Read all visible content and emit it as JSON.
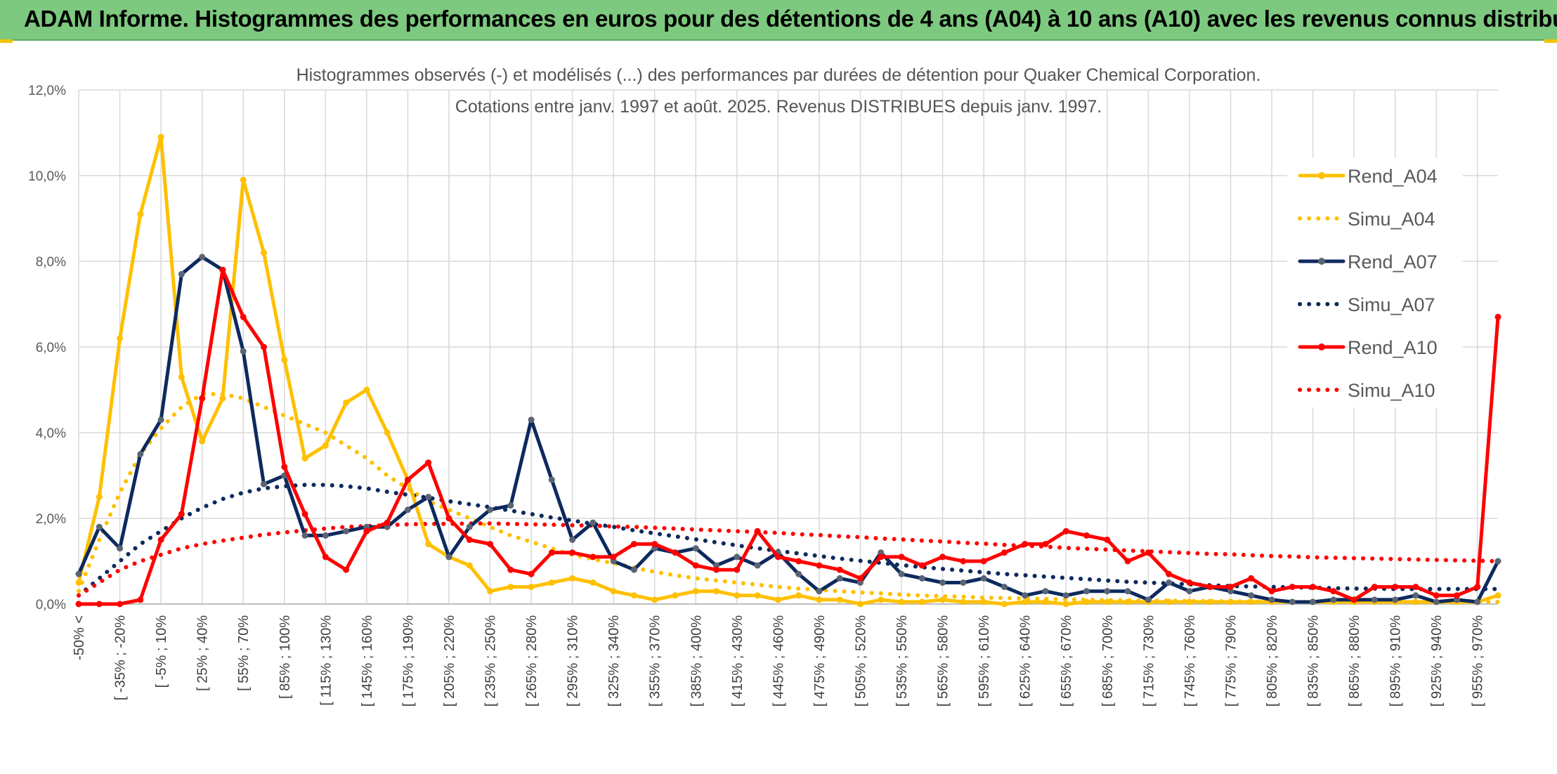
{
  "banner": {
    "title": "ADAM Informe. Histogrammes des performances en euros pour des détentions de 4 ans (A04) à 10 ans (A10) avec les revenus connus distribués"
  },
  "colors": {
    "banner": "#7dc97f",
    "grid": "#d9d9d9",
    "rend_a04": "#ffc000",
    "rend_a07": "#0d2a5e",
    "rend_a10": "#ff0000",
    "marker_a07": "#5a6473"
  },
  "chart_data": {
    "type": "line",
    "title": [
      "Histogrammes observés (-) et modélisés (...) des performances par durées de détention pour Quaker Chemical Corporation.",
      "Cotations entre janv. 1997 et août. 2025. Revenus DISTRIBUES depuis janv. 1997."
    ],
    "ylim": [
      0,
      12
    ],
    "yticks": [
      "0,0%",
      "2,0%",
      "4,0%",
      "6,0%",
      "8,0%",
      "10,0%",
      "12,0%"
    ],
    "grid": true,
    "legend_position": "right",
    "x_labels": [
      "-50% <",
      "[ -35% ; -20%",
      "[ -5% ; 10%",
      "[ 25% ; 40%",
      "[ 55% ; 70%",
      "[ 85% ; 100%",
      "[ 115% ; 130%",
      "[ 145% ; 160%",
      "[ 175% ; 190%",
      "[ 205% ; 220%",
      "[ 235% ; 250%",
      "[ 265% ; 280%",
      "[ 295% ; 310%",
      "[ 325% ; 340%",
      "[ 355% ; 370%",
      "[ 385% ; 400%",
      "[ 415% ; 430%",
      "[ 445% ; 460%",
      "[ 475% ; 490%",
      "[ 505% ; 520%",
      "[ 535% ; 550%",
      "[ 565% ; 580%",
      "[ 595% ; 610%",
      "[ 625% ; 640%",
      "[ 655% ; 670%",
      "[ 685% ; 700%",
      "[ 715% ; 730%",
      "[ 745% ; 760%",
      "[ 775% ; 790%",
      "[ 805% ; 820%",
      "[ 835% ; 850%",
      "[ 865% ; 880%",
      "[ 895% ; 910%",
      "[ 925% ; 940%",
      "[ 955% ; 970%"
    ],
    "x_count": 70,
    "series": [
      {
        "name": "Rend_A04",
        "style": "solid",
        "color": "#ffc000",
        "marker": true,
        "values": [
          0.5,
          2.5,
          6.2,
          9.1,
          10.9,
          5.3,
          3.8,
          4.8,
          9.9,
          8.2,
          5.7,
          3.4,
          3.7,
          4.7,
          5.0,
          4.0,
          2.9,
          1.4,
          1.1,
          0.9,
          0.3,
          0.4,
          0.4,
          0.5,
          0.6,
          0.5,
          0.3,
          0.2,
          0.1,
          0.2,
          0.3,
          0.3,
          0.2,
          0.2,
          0.1,
          0.2,
          0.1,
          0.1,
          0.0,
          0.1,
          0.05,
          0.05,
          0.1,
          0.05,
          0.05,
          0.0,
          0.05,
          0.05,
          0.0,
          0.05,
          0.05,
          0.05,
          0.05,
          0.05,
          0.05,
          0.05,
          0.05,
          0.05,
          0.05,
          0.05,
          0.05,
          0.05,
          0.05,
          0.05,
          0.05,
          0.05,
          0.05,
          0.05,
          0.05,
          0.2
        ]
      },
      {
        "name": "Simu_A04",
        "style": "dotted",
        "color": "#ffc000",
        "marker": false,
        "values": [
          0.3,
          1.5,
          2.6,
          3.5,
          4.1,
          4.6,
          4.9,
          4.9,
          4.8,
          4.6,
          4.4,
          4.2,
          4.0,
          3.7,
          3.4,
          3.0,
          2.7,
          2.4,
          2.2,
          2.0,
          1.8,
          1.6,
          1.45,
          1.3,
          1.15,
          1.05,
          0.95,
          0.85,
          0.75,
          0.67,
          0.6,
          0.55,
          0.5,
          0.45,
          0.4,
          0.36,
          0.33,
          0.3,
          0.27,
          0.25,
          0.22,
          0.2,
          0.18,
          0.17,
          0.15,
          0.14,
          0.13,
          0.12,
          0.11,
          0.1,
          0.09,
          0.09,
          0.08,
          0.08,
          0.07,
          0.07,
          0.06,
          0.06,
          0.06,
          0.05,
          0.05,
          0.05,
          0.05,
          0.05,
          0.05,
          0.05,
          0.05,
          0.05,
          0.05,
          0.05
        ]
      },
      {
        "name": "Rend_A07",
        "style": "solid",
        "color": "#0d2a5e",
        "marker": true,
        "values": [
          0.7,
          1.8,
          1.3,
          3.5,
          4.3,
          7.7,
          8.1,
          7.8,
          5.9,
          2.8,
          3.0,
          1.6,
          1.6,
          1.7,
          1.8,
          1.8,
          2.2,
          2.5,
          1.1,
          1.8,
          2.2,
          2.3,
          4.3,
          2.9,
          1.5,
          1.9,
          1.0,
          0.8,
          1.3,
          1.2,
          1.3,
          0.9,
          1.1,
          0.9,
          1.2,
          0.7,
          0.3,
          0.6,
          0.5,
          1.2,
          0.7,
          0.6,
          0.5,
          0.5,
          0.6,
          0.4,
          0.2,
          0.3,
          0.2,
          0.3,
          0.3,
          0.3,
          0.1,
          0.5,
          0.3,
          0.4,
          0.3,
          0.2,
          0.1,
          0.05,
          0.05,
          0.1,
          0.1,
          0.1,
          0.1,
          0.2,
          0.05,
          0.1,
          0.05,
          1.0
        ]
      },
      {
        "name": "Simu_A07",
        "style": "dotted",
        "color": "#0d2a5e",
        "marker": false,
        "values": [
          0.2,
          0.6,
          1.0,
          1.4,
          1.7,
          2.0,
          2.25,
          2.45,
          2.6,
          2.7,
          2.75,
          2.78,
          2.78,
          2.75,
          2.7,
          2.62,
          2.55,
          2.48,
          2.4,
          2.33,
          2.26,
          2.18,
          2.1,
          2.02,
          1.95,
          1.87,
          1.8,
          1.72,
          1.65,
          1.58,
          1.51,
          1.44,
          1.37,
          1.3,
          1.24,
          1.18,
          1.12,
          1.06,
          1.01,
          0.96,
          0.91,
          0.86,
          0.82,
          0.78,
          0.74,
          0.7,
          0.67,
          0.64,
          0.61,
          0.58,
          0.55,
          0.52,
          0.5,
          0.48,
          0.46,
          0.44,
          0.42,
          0.41,
          0.4,
          0.39,
          0.38,
          0.37,
          0.36,
          0.36,
          0.35,
          0.35,
          0.35,
          0.35,
          0.35,
          0.35
        ]
      },
      {
        "name": "Rend_A10",
        "style": "solid",
        "color": "#ff0000",
        "marker": true,
        "values": [
          0.0,
          0.0,
          0.0,
          0.1,
          1.5,
          2.1,
          4.8,
          7.8,
          6.7,
          6.0,
          3.2,
          2.1,
          1.1,
          0.8,
          1.7,
          1.9,
          2.9,
          3.3,
          2.0,
          1.5,
          1.4,
          0.8,
          0.7,
          1.2,
          1.2,
          1.1,
          1.1,
          1.4,
          1.4,
          1.2,
          0.9,
          0.8,
          0.8,
          1.7,
          1.1,
          1.0,
          0.9,
          0.8,
          0.6,
          1.1,
          1.1,
          0.9,
          1.1,
          1.0,
          1.0,
          1.2,
          1.4,
          1.4,
          1.7,
          1.6,
          1.5,
          1.0,
          1.2,
          0.7,
          0.5,
          0.4,
          0.4,
          0.6,
          0.3,
          0.4,
          0.4,
          0.3,
          0.1,
          0.4,
          0.4,
          0.4,
          0.2,
          0.2,
          0.4,
          6.7
        ]
      },
      {
        "name": "Simu_A10",
        "style": "dotted",
        "color": "#ff0000",
        "marker": false,
        "values": [
          0.2,
          0.5,
          0.8,
          1.0,
          1.15,
          1.3,
          1.4,
          1.48,
          1.55,
          1.62,
          1.67,
          1.72,
          1.76,
          1.8,
          1.82,
          1.84,
          1.86,
          1.87,
          1.87,
          1.88,
          1.88,
          1.87,
          1.86,
          1.85,
          1.84,
          1.83,
          1.81,
          1.8,
          1.78,
          1.76,
          1.74,
          1.72,
          1.7,
          1.68,
          1.66,
          1.63,
          1.61,
          1.58,
          1.56,
          1.53,
          1.51,
          1.48,
          1.46,
          1.43,
          1.41,
          1.38,
          1.36,
          1.34,
          1.31,
          1.29,
          1.27,
          1.25,
          1.23,
          1.21,
          1.19,
          1.17,
          1.16,
          1.14,
          1.12,
          1.11,
          1.09,
          1.08,
          1.07,
          1.06,
          1.05,
          1.04,
          1.03,
          1.02,
          1.01,
          1.0
        ]
      }
    ]
  }
}
